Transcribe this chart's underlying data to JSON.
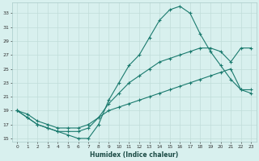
{
  "xlabel": "Humidex (Indice chaleur)",
  "bg_color": "#d8f0ee",
  "grid_color": "#c0ddd9",
  "line_color": "#1a7a6e",
  "xlim": [
    -0.5,
    23.5
  ],
  "ylim": [
    14.5,
    34.5
  ],
  "yticks": [
    15,
    17,
    19,
    21,
    23,
    25,
    27,
    29,
    31,
    33
  ],
  "xticks": [
    0,
    1,
    2,
    3,
    4,
    5,
    6,
    7,
    8,
    9,
    10,
    11,
    12,
    13,
    14,
    15,
    16,
    17,
    18,
    19,
    20,
    21,
    22,
    23
  ],
  "series": [
    [
      19.0,
      18.0,
      17.0,
      16.5,
      16.0,
      15.5,
      15.0,
      15.0,
      17.0,
      20.5,
      23.0,
      25.5,
      27.0,
      29.5,
      32.0,
      33.5,
      34.0,
      33.0,
      30.0,
      27.5,
      25.5,
      23.5,
      22.0,
      21.5
    ],
    [
      19.0,
      18.0,
      17.0,
      16.5,
      16.0,
      16.0,
      16.0,
      16.5,
      18.0,
      20.0,
      21.5,
      23.0,
      24.0,
      25.0,
      26.0,
      26.5,
      27.0,
      27.5,
      28.0,
      28.0,
      27.5,
      26.0,
      28.0,
      28.0
    ],
    [
      19.0,
      18.5,
      17.5,
      17.0,
      16.5,
      16.5,
      16.5,
      17.0,
      18.0,
      19.0,
      19.5,
      20.0,
      20.5,
      21.0,
      21.5,
      22.0,
      22.5,
      23.0,
      23.5,
      24.0,
      24.5,
      25.0,
      22.0,
      22.0
    ]
  ]
}
